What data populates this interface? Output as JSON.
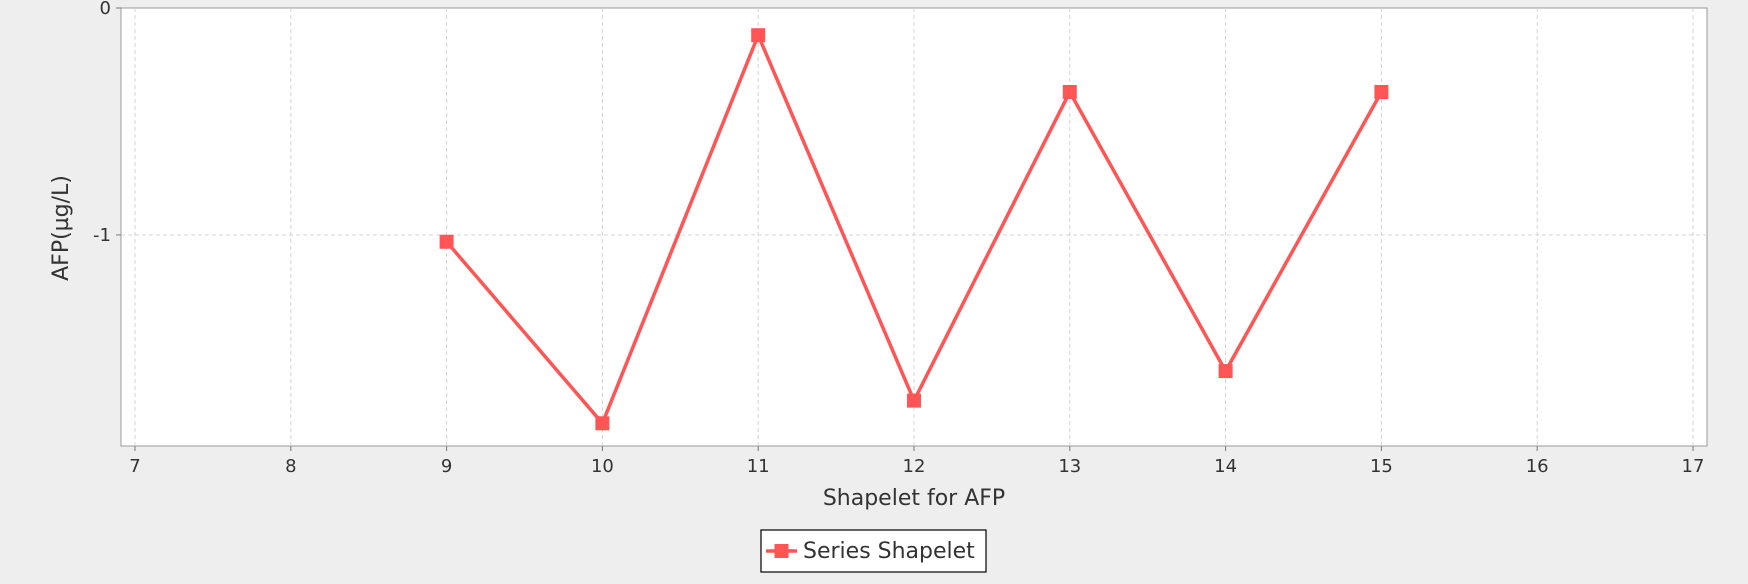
{
  "chart_data": {
    "type": "line",
    "title": "",
    "xlabel": "Shapelet for AFP",
    "ylabel": "AFP(µg/L)",
    "xlim": [
      7,
      17
    ],
    "ylim": [
      -1.93,
      0
    ],
    "x_ticks": [
      7,
      8,
      9,
      10,
      11,
      12,
      13,
      14,
      15,
      16,
      17
    ],
    "y_ticks": [
      0,
      -1
    ],
    "grid": true,
    "legend": "bottom-center",
    "series": [
      {
        "name": "Series Shapelet",
        "color": "#ff5555",
        "marker": "square",
        "x": [
          9,
          10,
          11,
          12,
          13,
          14,
          15
        ],
        "y": [
          -1.03,
          -1.83,
          -0.12,
          -1.73,
          -0.37,
          -1.6,
          -0.37
        ]
      }
    ]
  }
}
